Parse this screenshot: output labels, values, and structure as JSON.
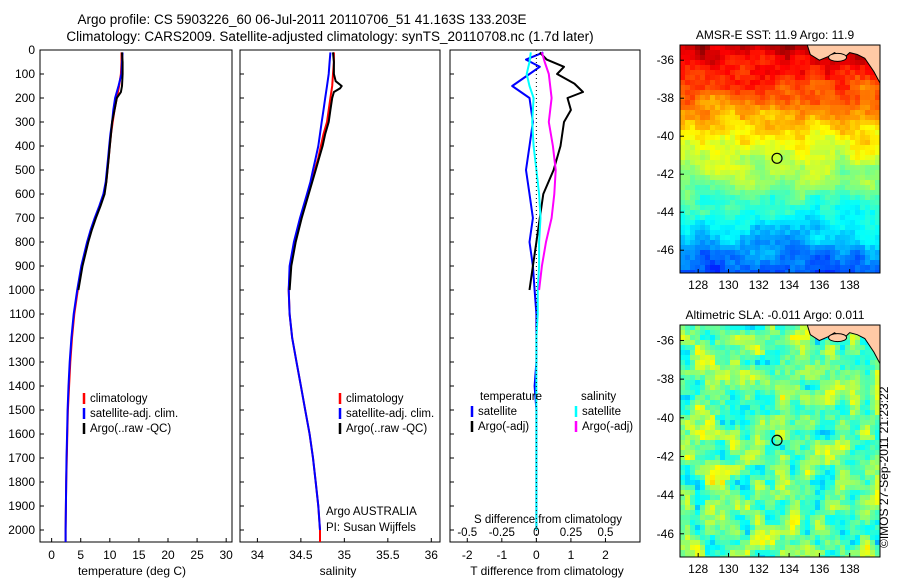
{
  "title": {
    "line1": "Argo profile: CS 5903226_60 06-Jul-2011 20110706_51 41.163S 133.203E",
    "line2": "Climatology: CARS2009. Satellite-adjusted climatology: synTS_20110708.nc (1.7d later)"
  },
  "footer": "©IMOS 27-Sep-2011 21:23:22",
  "colors": {
    "climatology": "#ff0000",
    "satellite": "#0000ff",
    "argo": "#000000",
    "sal_satellite": "#00ffff",
    "sal_argo": "#ff00ff"
  },
  "chart_data": [
    {
      "type": "line",
      "id": "temperature",
      "xlabel": "temperature (deg C)",
      "ylabel": "",
      "xlim": [
        -2,
        31
      ],
      "ylim": [
        2050,
        0
      ],
      "xticks": [
        "0",
        "5",
        "10",
        "15",
        "20",
        "25",
        "30"
      ],
      "yticks": [
        "0",
        "100",
        "200",
        "300",
        "400",
        "500",
        "600",
        "700",
        "800",
        "900",
        "1000",
        "1100",
        "1200",
        "1300",
        "1400",
        "1500",
        "1600",
        "1700",
        "1800",
        "1900",
        "2000"
      ],
      "legend": [
        "climatology",
        "satellite-adj. clim.",
        "Argo(..raw -QC)"
      ],
      "series": [
        {
          "name": "climatology",
          "color": "#ff0000",
          "depth": [
            10,
            50,
            100,
            150,
            200,
            250,
            300,
            350,
            400,
            450,
            500,
            550,
            600,
            650,
            700,
            750,
            800,
            900,
            1000,
            1100,
            1200,
            1300,
            1400,
            1500,
            1600,
            1700,
            1800,
            1900,
            2000,
            2050
          ],
          "values": [
            12.0,
            12.0,
            11.9,
            11.6,
            11.2,
            10.8,
            10.5,
            10.2,
            10.0,
            9.8,
            9.6,
            9.4,
            9.0,
            8.3,
            7.5,
            6.8,
            6.2,
            5.2,
            4.5,
            3.9,
            3.5,
            3.2,
            3.0,
            2.8,
            2.7,
            2.6,
            2.5,
            2.45,
            2.4,
            2.4
          ]
        },
        {
          "name": "satellite-adj. clim.",
          "color": "#0000ff",
          "depth": [
            10,
            50,
            100,
            150,
            200,
            250,
            300,
            350,
            400,
            450,
            500,
            550,
            600,
            650,
            700,
            750,
            800,
            900,
            1000,
            1100,
            1200,
            1300,
            1400,
            1500,
            1600,
            1700,
            1800,
            1900,
            2000,
            2050
          ],
          "values": [
            12.2,
            12.1,
            12.0,
            11.5,
            10.9,
            10.6,
            10.4,
            10.1,
            9.9,
            9.7,
            9.5,
            9.3,
            8.9,
            8.2,
            7.4,
            6.7,
            6.1,
            5.1,
            4.4,
            3.8,
            3.4,
            3.1,
            2.9,
            2.75,
            2.65,
            2.55,
            2.5,
            2.45,
            2.4,
            2.4
          ]
        },
        {
          "name": "Argo(..raw -QC)",
          "color": "#000000",
          "depth": [
            10,
            50,
            100,
            150,
            175,
            200,
            250,
            300,
            350,
            400,
            450,
            500,
            550,
            600,
            650,
            700,
            750,
            800,
            900,
            1000
          ],
          "values": [
            12.1,
            12.2,
            12.2,
            12.1,
            11.9,
            11.2,
            10.8,
            10.4,
            10.2,
            10.0,
            9.8,
            9.6,
            9.4,
            9.1,
            8.4,
            7.6,
            6.9,
            6.3,
            5.3,
            4.6
          ]
        }
      ]
    },
    {
      "type": "line",
      "id": "salinity",
      "xlabel": "salinity",
      "xlim": [
        33.8,
        36.1
      ],
      "ylim": [
        2050,
        0
      ],
      "xticks": [
        "34",
        "34.5",
        "35",
        "35.5",
        "36"
      ],
      "legend": [
        "climatology",
        "satellite-adj. clim.",
        "Argo(..raw -QC)"
      ],
      "annotation": [
        "Argo AUSTRALIA",
        "PI: Susan Wijffels"
      ],
      "series": [
        {
          "name": "climatology",
          "color": "#ff0000",
          "depth": [
            10,
            50,
            100,
            150,
            200,
            250,
            300,
            350,
            400,
            450,
            500,
            550,
            600,
            700,
            800,
            900,
            1000,
            1100,
            1200,
            1300,
            1400,
            1500,
            1600,
            1700,
            1800,
            1900,
            2000,
            2050
          ],
          "values": [
            34.88,
            34.88,
            34.87,
            34.86,
            34.84,
            34.82,
            34.8,
            34.76,
            34.73,
            34.7,
            34.66,
            34.62,
            34.58,
            34.5,
            34.43,
            34.38,
            34.36,
            34.37,
            34.4,
            34.45,
            34.5,
            34.55,
            34.6,
            34.64,
            34.67,
            34.7,
            34.72,
            34.72
          ]
        },
        {
          "name": "satellite-adj. clim.",
          "color": "#0000ff",
          "depth": [
            10,
            50,
            100,
            150,
            200,
            250,
            300,
            350,
            400,
            450,
            500,
            550,
            600,
            700,
            800,
            900,
            1000,
            1100,
            1200,
            1300,
            1400,
            1500,
            1600,
            1700,
            1800,
            1900,
            2000
          ],
          "values": [
            34.84,
            34.83,
            34.82,
            34.8,
            34.78,
            34.76,
            34.74,
            34.72,
            34.7,
            34.67,
            34.64,
            34.61,
            34.57,
            34.49,
            34.42,
            34.37,
            34.36,
            34.37,
            34.4,
            34.45,
            34.5,
            34.55,
            34.6,
            34.64,
            34.67,
            34.7,
            34.72
          ]
        },
        {
          "name": "Argo(..raw -QC)",
          "color": "#000000",
          "depth": [
            10,
            50,
            100,
            130,
            150,
            160,
            175,
            200,
            250,
            300,
            350,
            400,
            450,
            500,
            550,
            600,
            700,
            800,
            900,
            1000
          ],
          "values": [
            34.87,
            34.88,
            34.88,
            34.9,
            34.97,
            34.95,
            34.88,
            34.86,
            34.84,
            34.82,
            34.78,
            34.75,
            34.71,
            34.67,
            34.63,
            34.59,
            34.51,
            34.44,
            34.39,
            34.37
          ]
        }
      ]
    },
    {
      "type": "line",
      "id": "differences",
      "xlabel": "T difference from climatology",
      "toplabel": "S difference from climatology",
      "xlim": [
        -2.5,
        3.0
      ],
      "ylim": [
        2050,
        0
      ],
      "xticks": [
        "-2",
        "-1",
        "0",
        "1",
        "2"
      ],
      "sticks": [
        "-0.5",
        "-0.25",
        "0",
        "0.25",
        "0.5"
      ],
      "legend_headers": [
        "temperature",
        "salinity"
      ],
      "legend_temperature": [
        "satellite",
        "Argo(-adj)"
      ],
      "legend_salinity": [
        "satellite",
        "Argo(-adj)"
      ],
      "series": [
        {
          "name": "T satellite",
          "color": "#0000ff",
          "depth": [
            10,
            40,
            70,
            100,
            150,
            200,
            300,
            400,
            500,
            600,
            700,
            800,
            900,
            1000,
            1100,
            1200,
            1300,
            1400,
            1500,
            1600,
            1700,
            1800,
            1900,
            2000
          ],
          "values": [
            0.2,
            -0.3,
            0.1,
            -0.2,
            -0.7,
            -0.2,
            -0.1,
            -0.2,
            -0.3,
            -0.2,
            -0.1,
            -0.2,
            -0.1,
            -0.05,
            0.0,
            0.0,
            0.0,
            -0.05,
            0.0,
            0.0,
            0.0,
            0.0,
            0.0,
            0.0
          ]
        },
        {
          "name": "T Argo(-adj)",
          "color": "#000000",
          "depth": [
            10,
            40,
            70,
            100,
            140,
            175,
            200,
            250,
            300,
            400,
            500,
            600,
            700,
            800,
            900,
            1000
          ],
          "values": [
            0.1,
            0.3,
            0.8,
            0.6,
            1.1,
            1.35,
            0.9,
            1.0,
            0.8,
            0.7,
            0.5,
            0.2,
            0.1,
            0.0,
            -0.1,
            -0.2
          ]
        },
        {
          "name": "S satellite",
          "color": "#00ffff",
          "depth": [
            10,
            50,
            100,
            150,
            200,
            300,
            400,
            500,
            600,
            700,
            800,
            900,
            1000,
            1100,
            1200,
            1300,
            1400,
            1500,
            1600,
            1700,
            1800,
            1900,
            2000
          ],
          "values": [
            -0.04,
            -0.05,
            -0.07,
            -0.05,
            -0.02,
            -0.03,
            -0.02,
            0.0,
            0.02,
            0.03,
            0.02,
            0.02,
            0.01,
            0.01,
            0.0,
            0.0,
            0.0,
            0.0,
            0.0,
            0.0,
            0.0,
            0.0,
            0.0
          ]
        },
        {
          "name": "S Argo(-adj)",
          "color": "#ff00ff",
          "depth": [
            10,
            50,
            100,
            150,
            200,
            300,
            400,
            500,
            600,
            700,
            800,
            900,
            1000
          ],
          "values": [
            0.04,
            0.06,
            0.09,
            0.1,
            0.11,
            0.09,
            0.12,
            0.14,
            0.13,
            0.11,
            0.07,
            0.04,
            0.02
          ]
        }
      ]
    },
    {
      "type": "heatmap",
      "id": "sst",
      "title": "AMSR-E SST: 11.9 Argo: 11.9",
      "xticks": [
        "128",
        "130",
        "132",
        "134",
        "136",
        "138"
      ],
      "yticks": [
        "-36",
        "-38",
        "-40",
        "-42",
        "-44",
        "-46"
      ],
      "xlim": [
        126.8,
        140
      ],
      "ylim": [
        -47.2,
        -35.2
      ],
      "marker": {
        "lon": 133.203,
        "lat": -41.163
      }
    },
    {
      "type": "heatmap",
      "id": "sla",
      "title": "Altimetric SLA: -0.011 Argo: 0.011",
      "xticks": [
        "128",
        "130",
        "132",
        "134",
        "136",
        "138"
      ],
      "yticks": [
        "-36",
        "-38",
        "-40",
        "-42",
        "-44",
        "-46"
      ],
      "xlim": [
        126.8,
        140
      ],
      "ylim": [
        -47.2,
        -35.2
      ],
      "marker": {
        "lon": 133.203,
        "lat": -41.163
      }
    }
  ]
}
